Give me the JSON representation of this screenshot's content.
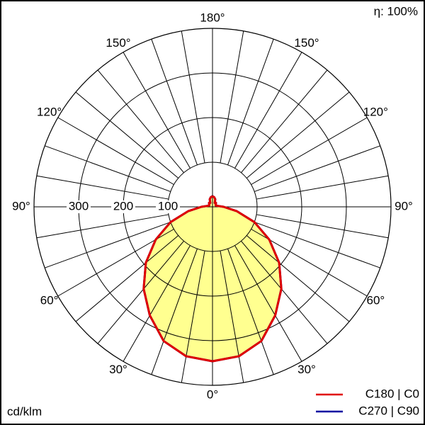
{
  "chart_data": {
    "type": "polar",
    "efficiency_label": "η: 100%",
    "unit_label": "cd/klm",
    "x": [
      0,
      10,
      20,
      30,
      40,
      50,
      60,
      70,
      80,
      90,
      100,
      110,
      120,
      130,
      140,
      150,
      160,
      170,
      180
    ],
    "series": [
      {
        "name": "C270 | C90",
        "color": "#0000a0",
        "values": [
          346,
          340,
          320,
          281,
          240,
          195,
          147,
          100,
          55,
          25,
          12,
          8,
          8,
          10,
          12,
          10,
          18,
          22,
          24
        ]
      },
      {
        "name": "C180 | C0",
        "color": "#e00000",
        "values": [
          346,
          340,
          320,
          281,
          240,
          195,
          147,
          100,
          55,
          25,
          12,
          8,
          8,
          10,
          12,
          10,
          18,
          22,
          24
        ]
      }
    ],
    "area_color": "#ffff90",
    "rlim": [
      0,
      400
    ],
    "rticks": [
      100,
      200,
      300
    ],
    "angle_ticks": [
      {
        "value": 0,
        "label": "0°"
      },
      {
        "value": 30,
        "label": "30°"
      },
      {
        "value": 60,
        "label": "60°"
      },
      {
        "value": 90,
        "label": "90°"
      },
      {
        "value": 120,
        "label": "120°"
      },
      {
        "value": 150,
        "label": "150°"
      },
      {
        "value": 180,
        "label": "180°"
      }
    ],
    "angle_grid_step": 10
  }
}
